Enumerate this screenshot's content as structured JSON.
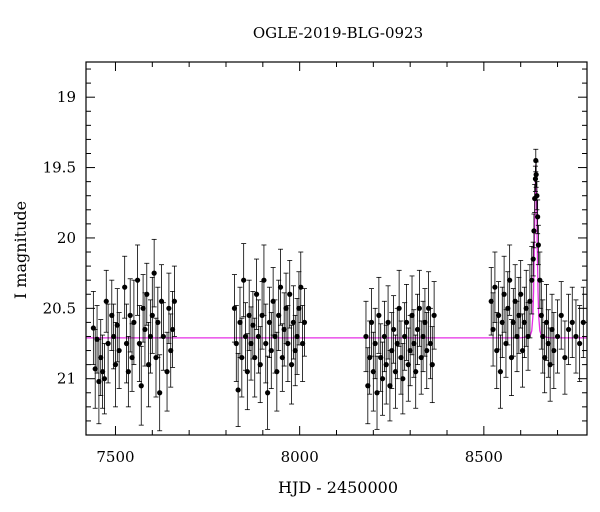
{
  "chart_data": {
    "type": "scatter",
    "title": "OGLE-2019-BLG-0923",
    "xlabel": "HJD - 2450000",
    "ylabel": "I magnitude",
    "xlim": [
      7420,
      8780
    ],
    "ylim": [
      21.4,
      18.75
    ],
    "y_inverted": true,
    "xticks": [
      7500,
      8000,
      8500
    ],
    "yticks": [
      19,
      19.5,
      20,
      20.5,
      21
    ],
    "ytick_labels": [
      "19",
      "19.5",
      "20",
      "20.5",
      "21"
    ],
    "grid": false,
    "colors": {
      "points": "#000000",
      "model": "#e62ee6",
      "frame": "#000000"
    },
    "series": [
      {
        "kind": "observations",
        "with_error_bars": true,
        "points": [
          [
            7440,
            20.64,
            0.26
          ],
          [
            7445,
            20.93,
            0.28
          ],
          [
            7450,
            20.72,
            0.24
          ],
          [
            7455,
            21.02,
            0.3
          ],
          [
            7460,
            20.85,
            0.27
          ],
          [
            7465,
            20.95,
            0.26
          ],
          [
            7470,
            21.0,
            0.25
          ],
          [
            7475,
            20.45,
            0.22
          ],
          [
            7480,
            20.75,
            0.28
          ],
          [
            7490,
            20.55,
            0.25
          ],
          [
            7495,
            20.7,
            0.23
          ],
          [
            7500,
            20.9,
            0.3
          ],
          [
            7505,
            20.62,
            0.26
          ],
          [
            7510,
            20.8,
            0.27
          ],
          [
            7525,
            20.35,
            0.22
          ],
          [
            7530,
            20.75,
            0.28
          ],
          [
            7535,
            20.95,
            0.25
          ],
          [
            7540,
            20.55,
            0.26
          ],
          [
            7545,
            20.85,
            0.24
          ],
          [
            7550,
            20.6,
            0.3
          ],
          [
            7560,
            20.3,
            0.25
          ],
          [
            7565,
            20.75,
            0.27
          ],
          [
            7570,
            21.05,
            0.28
          ],
          [
            7575,
            20.5,
            0.24
          ],
          [
            7580,
            20.65,
            0.26
          ],
          [
            7585,
            20.4,
            0.22
          ],
          [
            7590,
            20.9,
            0.3
          ],
          [
            7595,
            20.7,
            0.26
          ],
          [
            7600,
            20.55,
            0.27
          ],
          [
            7605,
            20.25,
            0.24
          ],
          [
            7610,
            20.85,
            0.28
          ],
          [
            7615,
            20.6,
            0.25
          ],
          [
            7620,
            21.1,
            0.27
          ],
          [
            7625,
            20.45,
            0.26
          ],
          [
            7630,
            20.7,
            0.24
          ],
          [
            7640,
            20.95,
            0.28
          ],
          [
            7645,
            20.5,
            0.25
          ],
          [
            7650,
            20.8,
            0.26
          ],
          [
            7655,
            20.65,
            0.27
          ],
          [
            7660,
            20.45,
            0.25
          ],
          [
            7823,
            20.5,
            0.24
          ],
          [
            7828,
            20.75,
            0.27
          ],
          [
            7833,
            21.08,
            0.26
          ],
          [
            7838,
            20.6,
            0.25
          ],
          [
            7843,
            20.85,
            0.28
          ],
          [
            7848,
            20.3,
            0.26
          ],
          [
            7853,
            20.7,
            0.24
          ],
          [
            7858,
            20.95,
            0.27
          ],
          [
            7863,
            20.55,
            0.25
          ],
          [
            7868,
            20.75,
            0.26
          ],
          [
            7873,
            20.62,
            0.24
          ],
          [
            7878,
            20.85,
            0.28
          ],
          [
            7883,
            20.4,
            0.25
          ],
          [
            7888,
            20.7,
            0.26
          ],
          [
            7893,
            20.9,
            0.27
          ],
          [
            7898,
            20.55,
            0.24
          ],
          [
            7903,
            20.3,
            0.25
          ],
          [
            7908,
            20.75,
            0.28
          ],
          [
            7913,
            21.1,
            0.26
          ],
          [
            7918,
            20.6,
            0.25
          ],
          [
            7923,
            20.8,
            0.27
          ],
          [
            7928,
            20.45,
            0.24
          ],
          [
            7933,
            20.7,
            0.26
          ],
          [
            7938,
            20.95,
            0.28
          ],
          [
            7943,
            20.55,
            0.25
          ],
          [
            7948,
            20.35,
            0.27
          ],
          [
            7953,
            20.85,
            0.24
          ],
          [
            7958,
            20.65,
            0.26
          ],
          [
            7963,
            20.5,
            0.25
          ],
          [
            7968,
            20.75,
            0.27
          ],
          [
            7973,
            20.4,
            0.24
          ],
          [
            7978,
            20.9,
            0.28
          ],
          [
            7983,
            20.6,
            0.26
          ],
          [
            7988,
            20.8,
            0.25
          ],
          [
            7993,
            20.7,
            0.27
          ],
          [
            7998,
            20.5,
            0.26
          ],
          [
            8003,
            20.35,
            0.25
          ],
          [
            8008,
            20.75,
            0.27
          ],
          [
            8013,
            20.6,
            0.24
          ],
          [
            8180,
            20.7,
            0.25
          ],
          [
            8185,
            21.05,
            0.27
          ],
          [
            8190,
            20.85,
            0.26
          ],
          [
            8195,
            20.6,
            0.24
          ],
          [
            8200,
            20.95,
            0.28
          ],
          [
            8205,
            20.75,
            0.25
          ],
          [
            8210,
            21.1,
            0.26
          ],
          [
            8215,
            20.55,
            0.27
          ],
          [
            8220,
            20.85,
            0.24
          ],
          [
            8225,
            21.0,
            0.26
          ],
          [
            8230,
            20.7,
            0.25
          ],
          [
            8235,
            20.9,
            0.28
          ],
          [
            8240,
            20.6,
            0.26
          ],
          [
            8245,
            21.05,
            0.25
          ],
          [
            8250,
            20.8,
            0.27
          ],
          [
            8255,
            20.65,
            0.24
          ],
          [
            8260,
            20.95,
            0.26
          ],
          [
            8265,
            20.75,
            0.25
          ],
          [
            8270,
            20.5,
            0.27
          ],
          [
            8275,
            20.85,
            0.26
          ],
          [
            8280,
            21.0,
            0.25
          ],
          [
            8285,
            20.7,
            0.24
          ],
          [
            8290,
            20.6,
            0.27
          ],
          [
            8295,
            20.9,
            0.26
          ],
          [
            8300,
            20.8,
            0.25
          ],
          [
            8305,
            20.55,
            0.28
          ],
          [
            8310,
            20.75,
            0.24
          ],
          [
            8315,
            20.95,
            0.26
          ],
          [
            8320,
            20.65,
            0.25
          ],
          [
            8325,
            20.5,
            0.27
          ],
          [
            8330,
            20.85,
            0.26
          ],
          [
            8335,
            20.7,
            0.25
          ],
          [
            8340,
            20.6,
            0.24
          ],
          [
            8345,
            20.8,
            0.27
          ],
          [
            8350,
            20.5,
            0.26
          ],
          [
            8355,
            20.75,
            0.25
          ],
          [
            8360,
            20.9,
            0.27
          ],
          [
            8365,
            20.55,
            0.24
          ],
          [
            8520,
            20.45,
            0.24
          ],
          [
            8525,
            20.65,
            0.26
          ],
          [
            8530,
            20.35,
            0.25
          ],
          [
            8535,
            20.8,
            0.27
          ],
          [
            8540,
            20.55,
            0.24
          ],
          [
            8545,
            20.95,
            0.26
          ],
          [
            8550,
            20.6,
            0.25
          ],
          [
            8555,
            20.4,
            0.27
          ],
          [
            8560,
            20.75,
            0.24
          ],
          [
            8565,
            20.5,
            0.26
          ],
          [
            8570,
            20.3,
            0.25
          ],
          [
            8575,
            20.85,
            0.27
          ],
          [
            8580,
            20.6,
            0.24
          ],
          [
            8585,
            20.45,
            0.26
          ],
          [
            8590,
            20.7,
            0.25
          ],
          [
            8595,
            20.55,
            0.27
          ],
          [
            8600,
            20.4,
            0.24
          ],
          [
            8605,
            20.8,
            0.26
          ],
          [
            8610,
            20.6,
            0.25
          ],
          [
            8615,
            20.5,
            0.27
          ],
          [
            8620,
            20.7,
            0.24
          ],
          [
            8625,
            20.45,
            0.26
          ],
          [
            8630,
            20.3,
            0.24
          ],
          [
            8634,
            20.15,
            0.12
          ],
          [
            8636,
            19.95,
            0.12
          ],
          [
            8638,
            19.72,
            0.1
          ],
          [
            8640,
            19.58,
            0.09
          ],
          [
            8641,
            19.45,
            0.08
          ],
          [
            8642,
            19.55,
            0.09
          ],
          [
            8644,
            19.7,
            0.1
          ],
          [
            8646,
            19.85,
            0.12
          ],
          [
            8648,
            20.05,
            0.14
          ],
          [
            8652,
            20.3,
            0.2
          ],
          [
            8656,
            20.55,
            0.24
          ],
          [
            8660,
            20.7,
            0.26
          ],
          [
            8665,
            20.85,
            0.25
          ],
          [
            8670,
            20.6,
            0.27
          ],
          [
            8675,
            20.75,
            0.24
          ],
          [
            8680,
            20.9,
            0.26
          ],
          [
            8685,
            20.65,
            0.25
          ],
          [
            8690,
            20.8,
            0.27
          ],
          [
            8700,
            20.7,
            0.26
          ],
          [
            8710,
            20.55,
            0.24
          ],
          [
            8720,
            20.85,
            0.26
          ],
          [
            8730,
            20.65,
            0.25
          ],
          [
            8740,
            20.6,
            0.25
          ],
          [
            8750,
            20.7,
            0.26
          ],
          [
            8760,
            20.75,
            0.27
          ],
          [
            8770,
            20.6,
            0.25
          ]
        ]
      },
      {
        "kind": "model",
        "baseline_mag": 20.71,
        "peak_hjd": 8641,
        "peak_mag": 19.48,
        "half_width_days": 4.5,
        "points": [
          [
            7420,
            20.71
          ],
          [
            8600,
            20.71
          ],
          [
            8625,
            20.7
          ],
          [
            8630,
            20.66
          ],
          [
            8633,
            20.56
          ],
          [
            8635,
            20.38
          ],
          [
            8637,
            20.05
          ],
          [
            8639,
            19.7
          ],
          [
            8641,
            19.48
          ],
          [
            8643,
            19.7
          ],
          [
            8645,
            20.05
          ],
          [
            8647,
            20.38
          ],
          [
            8649,
            20.56
          ],
          [
            8652,
            20.66
          ],
          [
            8657,
            20.7
          ],
          [
            8680,
            20.71
          ],
          [
            8780,
            20.71
          ]
        ]
      }
    ]
  }
}
